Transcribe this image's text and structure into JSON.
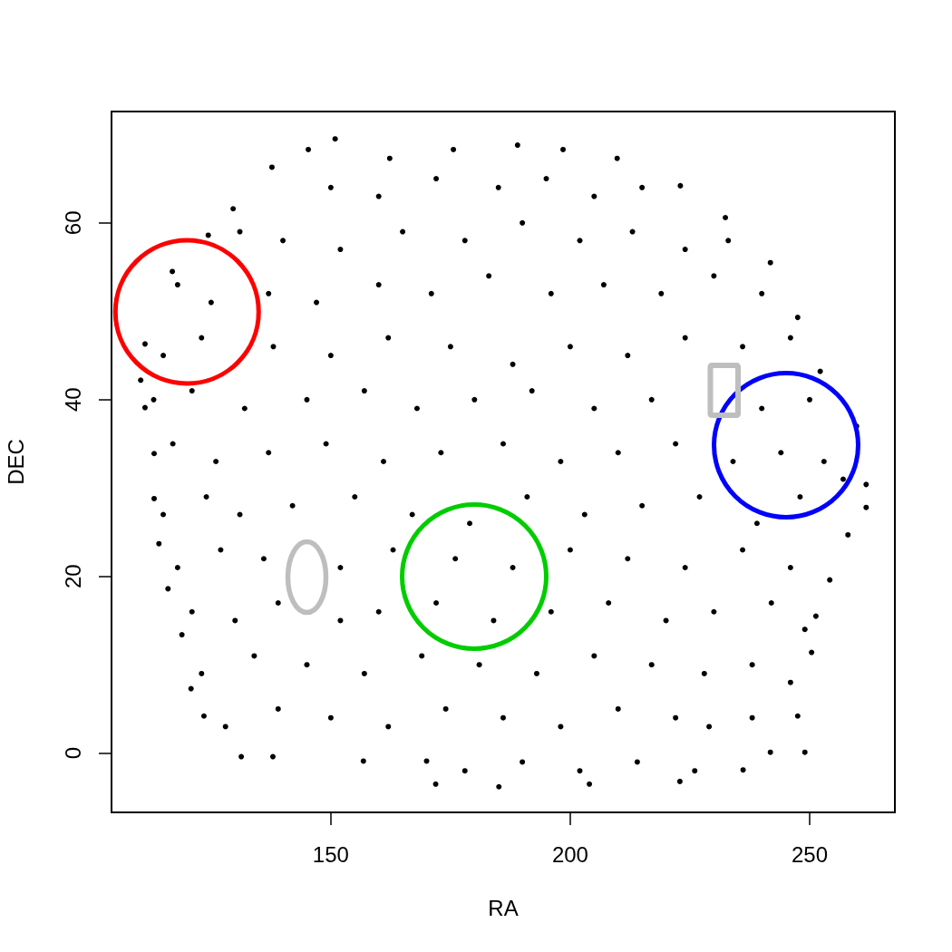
{
  "chart_data": {
    "type": "scatter",
    "xlabel": "RA",
    "ylabel": "DEC",
    "xlim": [
      104.2,
      267.8
    ],
    "ylim": [
      -6.7,
      72.6
    ],
    "xticks": [
      150,
      200,
      250
    ],
    "yticks": [
      0,
      20,
      40,
      60
    ],
    "grid": false,
    "marker": "circle",
    "color": "#000000",
    "x": [
      150.9,
      145.3,
      137.7,
      129.6,
      124.4,
      116.9,
      111.2,
      110.3,
      111.2,
      113.1,
      113.1,
      114.1,
      116,
      118.9,
      120.8,
      123.5,
      131.3,
      137.9,
      156.8,
      170,
      171.9,
      185.1,
      204,
      222.9,
      236.1,
      241.8,
      249,
      247.5,
      250.4,
      251.3,
      254.2,
      258,
      261.8,
      261.8,
      259.8,
      252.2,
      247.5,
      241.8,
      232.4,
      223,
      209.8,
      198.5,
      189,
      175.6,
      162.3,
      150,
      160,
      172,
      185,
      195,
      205,
      215,
      131,
      140,
      152,
      165,
      178,
      190,
      202,
      213,
      224,
      233,
      118,
      125,
      137,
      147,
      160,
      171,
      183,
      196,
      207,
      219,
      230,
      240,
      115,
      123,
      138,
      150,
      162,
      175,
      188,
      200,
      212,
      224,
      236,
      246,
      113,
      121,
      132,
      145,
      157,
      168,
      180,
      192,
      205,
      217,
      240,
      250,
      117,
      126,
      137,
      149,
      161,
      173,
      186,
      198,
      210,
      222,
      234,
      244,
      253,
      257,
      115,
      124,
      131,
      142,
      155,
      167,
      179,
      191,
      203,
      215,
      227,
      239,
      248,
      118,
      127,
      136,
      152,
      163,
      176,
      188,
      200,
      212,
      224,
      236,
      246,
      121,
      130,
      139,
      152,
      160,
      172,
      184,
      196,
      208,
      220,
      230,
      242,
      249,
      123,
      134,
      145,
      157,
      169,
      181,
      193,
      205,
      217,
      228,
      238,
      246,
      128,
      139,
      150,
      162,
      174,
      186,
      198,
      210,
      222,
      229,
      238,
      178,
      190,
      202,
      214,
      226
    ],
    "values": [
      69.5,
      68.3,
      66.3,
      61.6,
      58.6,
      54.5,
      46.3,
      42.2,
      39.1,
      33.9,
      28.8,
      23.7,
      18.6,
      13.4,
      7.3,
      4.2,
      -0.4,
      -0.4,
      -0.9,
      -0.9,
      -3.5,
      -3.8,
      -3.5,
      -3.2,
      -1.9,
      0.1,
      0.1,
      4.2,
      11.4,
      15.5,
      19.6,
      24.7,
      27.8,
      30.4,
      37,
      43.2,
      49.3,
      55.5,
      60.6,
      64.2,
      67.3,
      68.3,
      68.8,
      68.3,
      67.3,
      64,
      63,
      65,
      64,
      65,
      63,
      64,
      59,
      58,
      57,
      59,
      58,
      60,
      58,
      59,
      57,
      58,
      53,
      51,
      52,
      51,
      53,
      52,
      54,
      52,
      53,
      52,
      54,
      52,
      45,
      47,
      46,
      45,
      47,
      46,
      44,
      46,
      45,
      47,
      46,
      47,
      40,
      41,
      39,
      40,
      41,
      39,
      40,
      41,
      39,
      40,
      39,
      40,
      35,
      33,
      34,
      35,
      33,
      34,
      35,
      33,
      34,
      35,
      33,
      34,
      33,
      31,
      27,
      29,
      27,
      28,
      29,
      27,
      26,
      29,
      27,
      28,
      29,
      26,
      29,
      21,
      23,
      22,
      21,
      23,
      22,
      21,
      23,
      22,
      21,
      23,
      21,
      16,
      15,
      17,
      15,
      16,
      17,
      15,
      16,
      17,
      15,
      16,
      17,
      14,
      9,
      11,
      10,
      9,
      11,
      10,
      9,
      11,
      10,
      9,
      10,
      8,
      3,
      5,
      4,
      3,
      5,
      4,
      3,
      5,
      4,
      3,
      4,
      -2,
      -1,
      -2,
      -1,
      -2
    ]
  }
}
